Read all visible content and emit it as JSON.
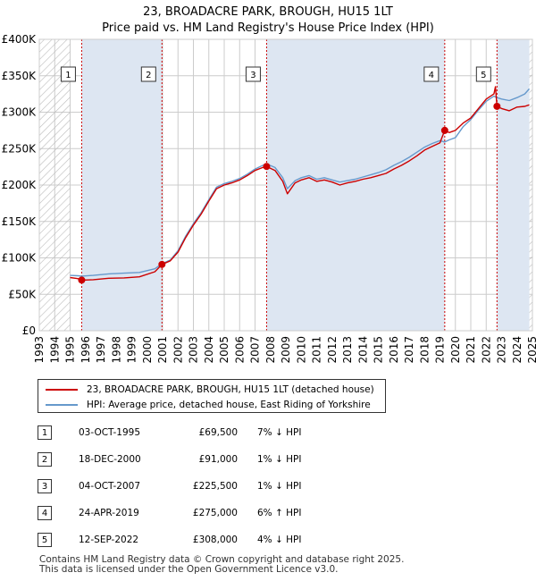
{
  "title_line1": "23, BROADACRE PARK, BROUGH, HU15 1LT",
  "title_line2": "Price paid vs. HM Land Registry's House Price Index (HPI)",
  "colors": {
    "property": "#cc0000",
    "hpi": "#6699cc",
    "shade": "#dde6f2",
    "grid": "#cccccc",
    "marker_line": "#cc0000"
  },
  "chart_data": {
    "type": "line",
    "title": "Price paid vs. HM Land Registry's House Price Index (HPI)",
    "xlim": [
      1993,
      2025
    ],
    "ylim": [
      0,
      400000
    ],
    "y_ticks": [
      {
        "value": 0,
        "label": "£0"
      },
      {
        "value": 50000,
        "label": "£50K"
      },
      {
        "value": 100000,
        "label": "£100K"
      },
      {
        "value": 150000,
        "label": "£150K"
      },
      {
        "value": 200000,
        "label": "£200K"
      },
      {
        "value": 250000,
        "label": "£250K"
      },
      {
        "value": 300000,
        "label": "£300K"
      },
      {
        "value": 350000,
        "label": "£350K"
      },
      {
        "value": 400000,
        "label": "£400K"
      }
    ],
    "x_ticks": [
      "1993",
      "1994",
      "1995",
      "1996",
      "1997",
      "1998",
      "1999",
      "2000",
      "2001",
      "2002",
      "2003",
      "2004",
      "2005",
      "2006",
      "2007",
      "2008",
      "2009",
      "2010",
      "2011",
      "2012",
      "2013",
      "2014",
      "2015",
      "2016",
      "2017",
      "2018",
      "2019",
      "2020",
      "2021",
      "2022",
      "2023",
      "2024",
      "2025"
    ],
    "hatched_ranges": [
      [
        1993,
        1995.0
      ],
      [
        2024.8,
        2025
      ]
    ],
    "shaded_ranges": [
      [
        1995.75,
        2000.96
      ],
      [
        2007.75,
        2019.31
      ],
      [
        2022.7,
        2024.8
      ]
    ],
    "series": [
      {
        "name": "23, BROADACRE PARK, BROUGH, HU15 1LT (detached house)",
        "color": "#cc0000",
        "points": [
          [
            1995.0,
            73000
          ],
          [
            1995.5,
            71500
          ],
          [
            1995.75,
            69500
          ],
          [
            1996.5,
            70000
          ],
          [
            1997.5,
            72000
          ],
          [
            1998.5,
            72500
          ],
          [
            1999.5,
            74000
          ],
          [
            2000.5,
            81000
          ],
          [
            2000.96,
            91000
          ],
          [
            2001.5,
            96000
          ],
          [
            2002.0,
            108000
          ],
          [
            2002.5,
            128000
          ],
          [
            2003.0,
            145000
          ],
          [
            2003.5,
            160000
          ],
          [
            2004.0,
            178000
          ],
          [
            2004.5,
            195000
          ],
          [
            2005.0,
            200000
          ],
          [
            2005.5,
            203000
          ],
          [
            2006.0,
            207000
          ],
          [
            2006.5,
            213000
          ],
          [
            2007.0,
            220000
          ],
          [
            2007.5,
            224000
          ],
          [
            2007.75,
            225500
          ],
          [
            2008.3,
            220000
          ],
          [
            2008.8,
            205000
          ],
          [
            2009.1,
            188000
          ],
          [
            2009.6,
            203000
          ],
          [
            2010.0,
            207000
          ],
          [
            2010.5,
            210000
          ],
          [
            2011.0,
            205000
          ],
          [
            2011.5,
            207000
          ],
          [
            2012.0,
            204000
          ],
          [
            2012.5,
            200000
          ],
          [
            2013.0,
            203000
          ],
          [
            2013.5,
            205000
          ],
          [
            2014.0,
            208000
          ],
          [
            2014.5,
            210000
          ],
          [
            2015.0,
            213000
          ],
          [
            2015.5,
            216000
          ],
          [
            2016.0,
            222000
          ],
          [
            2016.5,
            227000
          ],
          [
            2017.0,
            233000
          ],
          [
            2017.5,
            240000
          ],
          [
            2018.0,
            248000
          ],
          [
            2018.5,
            253000
          ],
          [
            2019.0,
            258000
          ],
          [
            2019.31,
            275000
          ],
          [
            2019.6,
            272000
          ],
          [
            2020.0,
            275000
          ],
          [
            2020.5,
            285000
          ],
          [
            2021.0,
            292000
          ],
          [
            2021.5,
            305000
          ],
          [
            2022.0,
            318000
          ],
          [
            2022.5,
            325000
          ],
          [
            2022.6,
            335000
          ],
          [
            2022.7,
            308000
          ],
          [
            2023.0,
            305000
          ],
          [
            2023.5,
            302000
          ],
          [
            2024.0,
            307000
          ],
          [
            2024.5,
            308000
          ],
          [
            2024.8,
            310000
          ]
        ]
      },
      {
        "name": "HPI: Average price, detached house, East Riding of Yorkshire",
        "color": "#6699cc",
        "points": [
          [
            1995.0,
            76000
          ],
          [
            1995.5,
            75500
          ],
          [
            1995.75,
            75000
          ],
          [
            1996.5,
            76000
          ],
          [
            1997.5,
            78000
          ],
          [
            1998.5,
            79000
          ],
          [
            1999.5,
            80000
          ],
          [
            2000.5,
            85000
          ],
          [
            2000.96,
            92000
          ],
          [
            2001.5,
            97000
          ],
          [
            2002.0,
            110000
          ],
          [
            2002.5,
            130000
          ],
          [
            2003.0,
            147000
          ],
          [
            2003.5,
            162000
          ],
          [
            2004.0,
            180000
          ],
          [
            2004.5,
            197000
          ],
          [
            2005.0,
            202000
          ],
          [
            2005.5,
            205000
          ],
          [
            2006.0,
            209000
          ],
          [
            2006.5,
            215000
          ],
          [
            2007.0,
            222000
          ],
          [
            2007.5,
            227000
          ],
          [
            2007.75,
            229000
          ],
          [
            2008.3,
            224000
          ],
          [
            2008.8,
            210000
          ],
          [
            2009.1,
            195000
          ],
          [
            2009.6,
            206000
          ],
          [
            2010.0,
            210000
          ],
          [
            2010.5,
            213000
          ],
          [
            2011.0,
            208000
          ],
          [
            2011.5,
            210000
          ],
          [
            2012.0,
            207000
          ],
          [
            2012.5,
            204000
          ],
          [
            2013.0,
            206000
          ],
          [
            2013.5,
            208000
          ],
          [
            2014.0,
            211000
          ],
          [
            2014.5,
            214000
          ],
          [
            2015.0,
            217000
          ],
          [
            2015.5,
            221000
          ],
          [
            2016.0,
            227000
          ],
          [
            2016.5,
            232000
          ],
          [
            2017.0,
            238000
          ],
          [
            2017.5,
            245000
          ],
          [
            2018.0,
            252000
          ],
          [
            2018.5,
            257000
          ],
          [
            2019.0,
            261000
          ],
          [
            2019.31,
            259000
          ],
          [
            2019.6,
            262000
          ],
          [
            2020.0,
            265000
          ],
          [
            2020.5,
            280000
          ],
          [
            2021.0,
            290000
          ],
          [
            2021.5,
            303000
          ],
          [
            2022.0,
            315000
          ],
          [
            2022.5,
            322000
          ],
          [
            2022.7,
            320000
          ],
          [
            2023.0,
            318000
          ],
          [
            2023.5,
            316000
          ],
          [
            2024.0,
            320000
          ],
          [
            2024.5,
            325000
          ],
          [
            2024.8,
            332000
          ]
        ]
      }
    ],
    "sales": [
      {
        "id": "1",
        "x": 1995.75,
        "y": 69500
      },
      {
        "id": "2",
        "x": 2000.96,
        "y": 91000
      },
      {
        "id": "3",
        "x": 2007.75,
        "y": 225500
      },
      {
        "id": "4",
        "x": 2019.31,
        "y": 275000
      },
      {
        "id": "5",
        "x": 2022.7,
        "y": 308000
      }
    ]
  },
  "legend": {
    "property_label": "23, BROADACRE PARK, BROUGH, HU15 1LT (detached house)",
    "hpi_label": "HPI: Average price, detached house, East Riding of Yorkshire"
  },
  "sales_table": [
    {
      "id": "1",
      "date": "03-OCT-1995",
      "price": "£69,500",
      "hpi": "7% ↓ HPI"
    },
    {
      "id": "2",
      "date": "18-DEC-2000",
      "price": "£91,000",
      "hpi": "1% ↓ HPI"
    },
    {
      "id": "3",
      "date": "04-OCT-2007",
      "price": "£225,500",
      "hpi": "1% ↓ HPI"
    },
    {
      "id": "4",
      "date": "24-APR-2019",
      "price": "£275,000",
      "hpi": "6% ↑ HPI"
    },
    {
      "id": "5",
      "date": "12-SEP-2022",
      "price": "£308,000",
      "hpi": "4% ↓ HPI"
    }
  ],
  "footer": {
    "line1": "Contains HM Land Registry data © Crown copyright and database right 2025.",
    "line2": "This data is licensed under the Open Government Licence v3.0."
  }
}
